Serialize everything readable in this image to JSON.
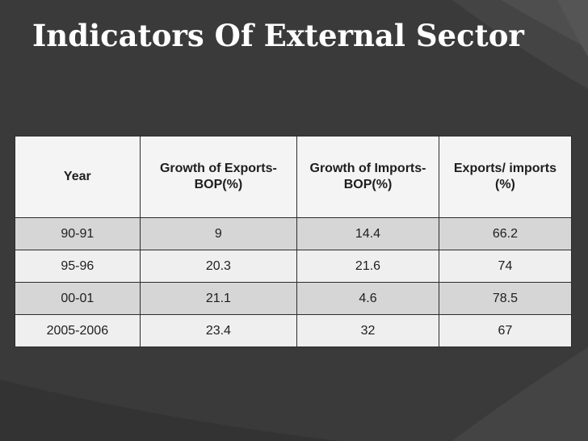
{
  "slide": {
    "title": "Indicators Of External Sector"
  },
  "table": {
    "headers": [
      "Year",
      "Growth of Exports-BOP(%)",
      "Growth of Imports-BOP(%)",
      "Exports/ imports (%)"
    ],
    "rows": [
      [
        "90-91",
        "9",
        "14.4",
        "66.2"
      ],
      [
        "95-96",
        "20.3",
        "21.6",
        "74"
      ],
      [
        "00-01",
        "21.1",
        "4.6",
        "78.5"
      ],
      [
        "2005-2006",
        "23.4",
        "32",
        "67"
      ]
    ]
  },
  "colors": {
    "background": "#3a3a3a",
    "title_text": "#ffffff",
    "row_shaded": "#d6d6d6",
    "row_light": "#efefef"
  }
}
